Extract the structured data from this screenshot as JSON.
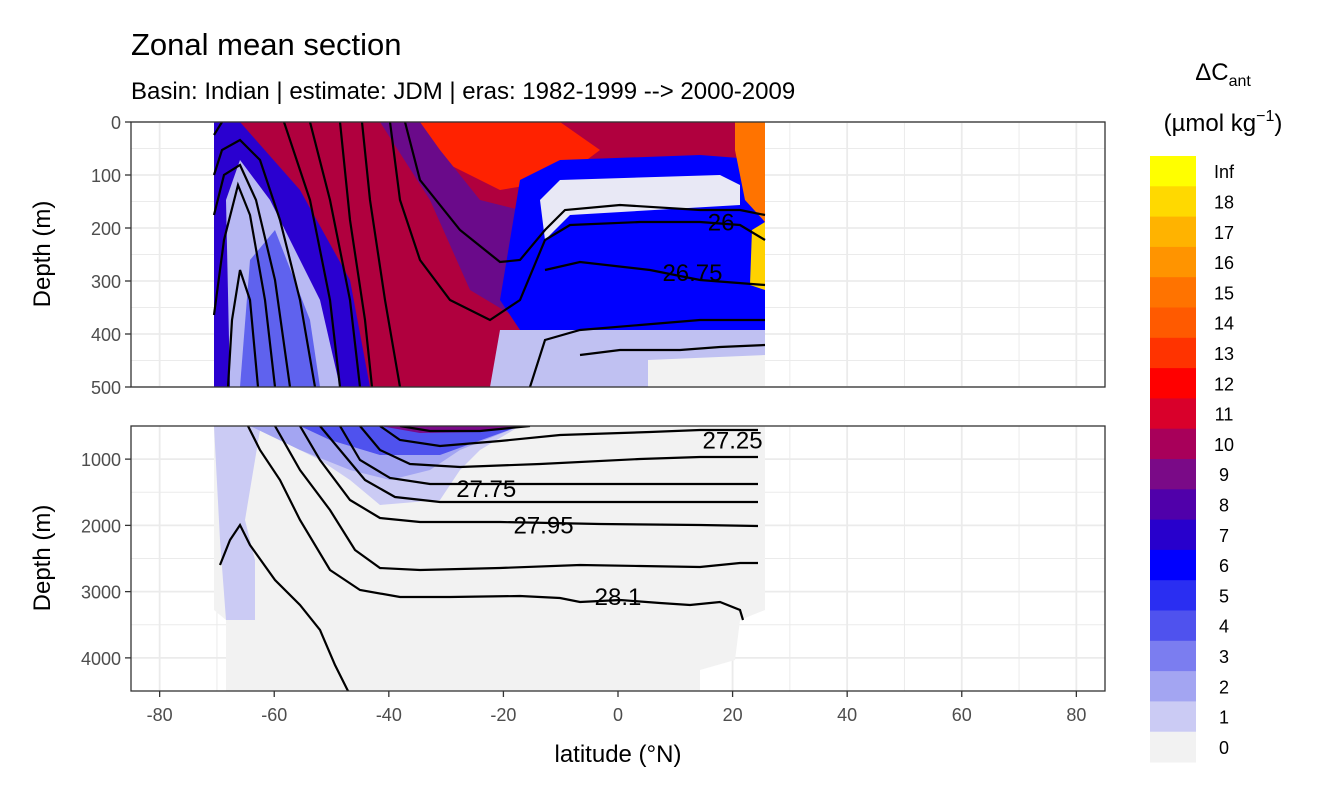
{
  "chart_data": {
    "type": "heatmap",
    "title": "Zonal mean section",
    "subtitle": "Basin: Indian | estimate: JDM  | eras: 1982-1999 --> 2000-2009",
    "xlabel": "latitude (°N)",
    "ylabel": "Depth (m)",
    "xlim": [
      -85,
      85
    ],
    "x_ticks": [
      -80,
      -60,
      -40,
      -20,
      0,
      20,
      40,
      60,
      80
    ],
    "x_tick_labels": [
      "-80",
      "-60",
      "-40",
      "-20",
      "0",
      "20",
      "40",
      "60",
      "80"
    ],
    "panels": [
      {
        "name": "upper",
        "ylim": [
          0,
          500
        ],
        "y_ticks": [
          0,
          100,
          200,
          300,
          400,
          500
        ],
        "y_tick_labels": [
          "0",
          "100",
          "200",
          "300",
          "400",
          "500"
        ],
        "data_extent_lat": [
          -70,
          25.5
        ]
      },
      {
        "name": "lower",
        "ylim": [
          500,
          4500
        ],
        "y_ticks": [
          1000,
          2000,
          3000,
          4000
        ],
        "y_tick_labels": [
          "1000",
          "2000",
          "3000",
          "4000"
        ],
        "data_extent_lat": [
          -70,
          24.5
        ]
      }
    ],
    "contour_labels": [
      {
        "text": "26",
        "panel": "upper",
        "lat": 18,
        "depth": 190
      },
      {
        "text": "26.75",
        "panel": "upper",
        "lat": 13,
        "depth": 285
      },
      {
        "text": "27.25",
        "panel": "lower",
        "lat": 20,
        "depth": 720
      },
      {
        "text": "27.75",
        "panel": "lower",
        "lat": -23,
        "depth": 1450
      },
      {
        "text": "27.95",
        "panel": "lower",
        "lat": -13,
        "depth": 2000
      },
      {
        "text": "28.1",
        "panel": "lower",
        "lat": 0,
        "depth": 3080
      }
    ],
    "legend": {
      "title": "ΔC",
      "title_subscript": "ant",
      "units": "(µmol kg",
      "units_superscript": "−1",
      "units_close": ")",
      "position": "right",
      "labels": [
        "Inf",
        "18",
        "17",
        "16",
        "15",
        "14",
        "13",
        "12",
        "11",
        "10",
        "9",
        "8",
        "7",
        "6",
        "5",
        "4",
        "3",
        "2",
        "1",
        "0"
      ],
      "colors": [
        "#ffff00",
        "#ffd900",
        "#ffb300",
        "#ff9400",
        "#ff7300",
        "#ff5a00",
        "#ff3300",
        "#ff0000",
        "#d9002b",
        "#a8005a",
        "#7a0a87",
        "#5000aa",
        "#2800cc",
        "#0000ff",
        "#2a2ef2",
        "#4f52ee",
        "#7b7df0",
        "#a3a5f2",
        "#cbcbf4",
        "#f2f2f2"
      ]
    }
  }
}
